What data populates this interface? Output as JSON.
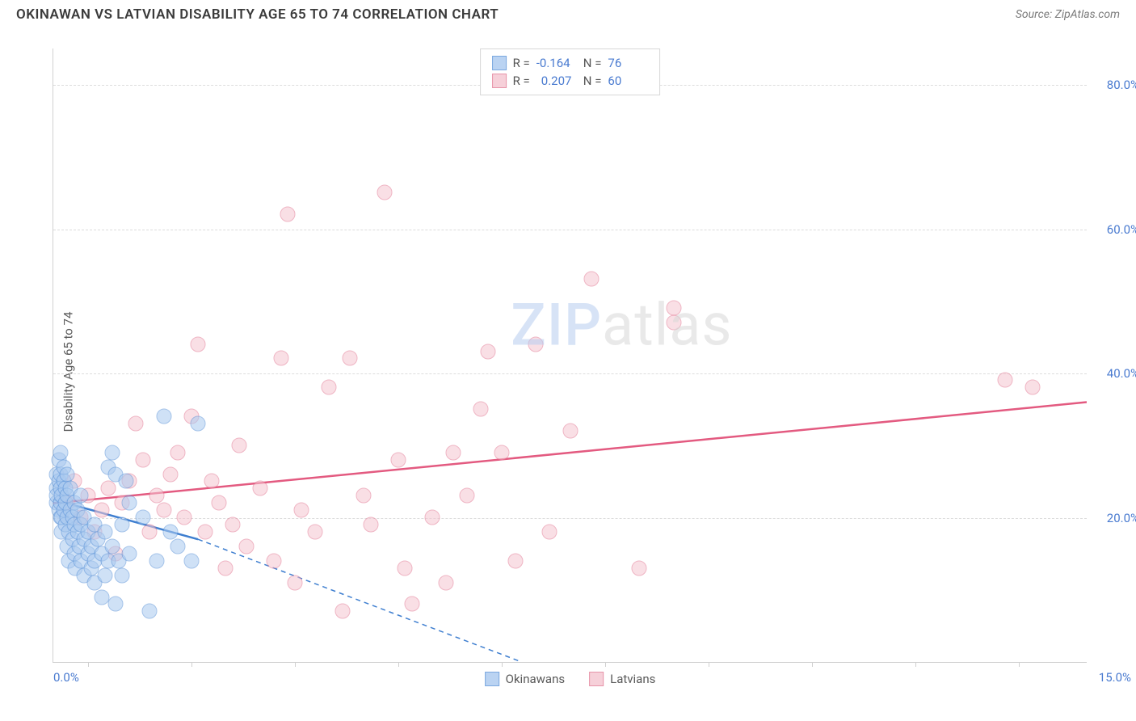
{
  "header": {
    "title": "OKINAWAN VS LATVIAN DISABILITY AGE 65 TO 74 CORRELATION CHART",
    "source": "Source: ZipAtlas.com"
  },
  "watermark": {
    "part1": "ZIP",
    "part2": "atlas"
  },
  "chart": {
    "type": "scatter",
    "ylabel": "Disability Age 65 to 74",
    "xlim": [
      0,
      15
    ],
    "ylim": [
      0,
      85
    ],
    "xlabel_min": "0.0%",
    "xlabel_max": "15.0%",
    "xtick_positions": [
      0.5,
      2.0,
      3.5,
      5.0,
      6.5,
      8.0,
      9.5,
      11.0,
      12.5,
      14.0
    ],
    "yticks": [
      {
        "v": 20,
        "label": "20.0%"
      },
      {
        "v": 40,
        "label": "40.0%"
      },
      {
        "v": 60,
        "label": "60.0%"
      },
      {
        "v": 80,
        "label": "80.0%"
      }
    ],
    "grid_color": "#dcdcdc",
    "background_color": "#ffffff",
    "series": {
      "okinawans": {
        "label": "Okinawans",
        "fill": "#a9c9ef",
        "stroke": "#5b93d8",
        "fill_opacity": 0.55,
        "r_value": "-0.164",
        "n_value": "76",
        "trend": {
          "x1": 0,
          "y1": 22.5,
          "x2": 2.1,
          "y2": 17.0,
          "dash_x2": 6.8,
          "dash_y2": 0,
          "color": "#3f7fd0",
          "width": 2.5
        },
        "points": [
          [
            0.05,
            22
          ],
          [
            0.05,
            24
          ],
          [
            0.05,
            26
          ],
          [
            0.05,
            23
          ],
          [
            0.08,
            21
          ],
          [
            0.08,
            25
          ],
          [
            0.08,
            28
          ],
          [
            0.1,
            20
          ],
          [
            0.1,
            22
          ],
          [
            0.1,
            24
          ],
          [
            0.1,
            26
          ],
          [
            0.1,
            29
          ],
          [
            0.12,
            18
          ],
          [
            0.12,
            20
          ],
          [
            0.12,
            23
          ],
          [
            0.15,
            21
          ],
          [
            0.15,
            25
          ],
          [
            0.15,
            27
          ],
          [
            0.18,
            19
          ],
          [
            0.18,
            22
          ],
          [
            0.18,
            24
          ],
          [
            0.2,
            16
          ],
          [
            0.2,
            20
          ],
          [
            0.2,
            23
          ],
          [
            0.2,
            26
          ],
          [
            0.22,
            14
          ],
          [
            0.22,
            18
          ],
          [
            0.25,
            21
          ],
          [
            0.25,
            24
          ],
          [
            0.28,
            17
          ],
          [
            0.28,
            20
          ],
          [
            0.3,
            15
          ],
          [
            0.3,
            19
          ],
          [
            0.3,
            22
          ],
          [
            0.32,
            13
          ],
          [
            0.35,
            18
          ],
          [
            0.35,
            21
          ],
          [
            0.38,
            16
          ],
          [
            0.4,
            14
          ],
          [
            0.4,
            19
          ],
          [
            0.4,
            23
          ],
          [
            0.45,
            12
          ],
          [
            0.45,
            17
          ],
          [
            0.45,
            20
          ],
          [
            0.5,
            15
          ],
          [
            0.5,
            18
          ],
          [
            0.55,
            13
          ],
          [
            0.55,
            16
          ],
          [
            0.6,
            11
          ],
          [
            0.6,
            14
          ],
          [
            0.6,
            19
          ],
          [
            0.65,
            17
          ],
          [
            0.7,
            9
          ],
          [
            0.7,
            15
          ],
          [
            0.75,
            12
          ],
          [
            0.75,
            18
          ],
          [
            0.8,
            14
          ],
          [
            0.8,
            27
          ],
          [
            0.85,
            16
          ],
          [
            0.85,
            29
          ],
          [
            0.9,
            8
          ],
          [
            0.9,
            26
          ],
          [
            0.95,
            14
          ],
          [
            1.0,
            12
          ],
          [
            1.0,
            19
          ],
          [
            1.05,
            25
          ],
          [
            1.1,
            15
          ],
          [
            1.1,
            22
          ],
          [
            1.3,
            20
          ],
          [
            1.4,
            7
          ],
          [
            1.5,
            14
          ],
          [
            1.6,
            34
          ],
          [
            1.7,
            18
          ],
          [
            1.8,
            16
          ],
          [
            2.0,
            14
          ],
          [
            2.1,
            33
          ]
        ]
      },
      "latvians": {
        "label": "Latvians",
        "fill": "#f5c5d0",
        "stroke": "#e27a94",
        "fill_opacity": 0.55,
        "r_value": "0.207",
        "n_value": "60",
        "trend": {
          "x1": 0,
          "y1": 22.0,
          "x2": 15,
          "y2": 36.0,
          "color": "#e35a80",
          "width": 2.5
        },
        "points": [
          [
            0.2,
            22
          ],
          [
            0.3,
            25
          ],
          [
            0.4,
            20
          ],
          [
            0.5,
            23
          ],
          [
            0.6,
            18
          ],
          [
            0.7,
            21
          ],
          [
            0.8,
            24
          ],
          [
            0.9,
            15
          ],
          [
            1.0,
            22
          ],
          [
            1.1,
            25
          ],
          [
            1.2,
            33
          ],
          [
            1.3,
            28
          ],
          [
            1.4,
            18
          ],
          [
            1.5,
            23
          ],
          [
            1.6,
            21
          ],
          [
            1.7,
            26
          ],
          [
            1.8,
            29
          ],
          [
            1.9,
            20
          ],
          [
            2.0,
            34
          ],
          [
            2.1,
            44
          ],
          [
            2.2,
            18
          ],
          [
            2.3,
            25
          ],
          [
            2.4,
            22
          ],
          [
            2.5,
            13
          ],
          [
            2.6,
            19
          ],
          [
            2.7,
            30
          ],
          [
            2.8,
            16
          ],
          [
            3.0,
            24
          ],
          [
            3.2,
            14
          ],
          [
            3.3,
            42
          ],
          [
            3.4,
            62
          ],
          [
            3.5,
            11
          ],
          [
            3.6,
            21
          ],
          [
            3.8,
            18
          ],
          [
            4.0,
            38
          ],
          [
            4.2,
            7
          ],
          [
            4.3,
            42
          ],
          [
            4.5,
            23
          ],
          [
            4.6,
            19
          ],
          [
            4.8,
            65
          ],
          [
            5.0,
            28
          ],
          [
            5.1,
            13
          ],
          [
            5.2,
            8
          ],
          [
            5.5,
            20
          ],
          [
            5.7,
            11
          ],
          [
            5.8,
            29
          ],
          [
            6.0,
            23
          ],
          [
            6.2,
            35
          ],
          [
            6.3,
            43
          ],
          [
            6.5,
            29
          ],
          [
            6.7,
            14
          ],
          [
            7.0,
            44
          ],
          [
            7.2,
            18
          ],
          [
            7.5,
            32
          ],
          [
            7.8,
            53
          ],
          [
            8.5,
            13
          ],
          [
            9.0,
            47
          ],
          [
            9.0,
            49
          ],
          [
            13.8,
            39
          ],
          [
            14.2,
            38
          ]
        ]
      }
    },
    "legend_top": {
      "r_label": "R =",
      "n_label": "N ="
    },
    "legend_bottom": [
      {
        "key": "okinawans"
      },
      {
        "key": "latvians"
      }
    ]
  }
}
